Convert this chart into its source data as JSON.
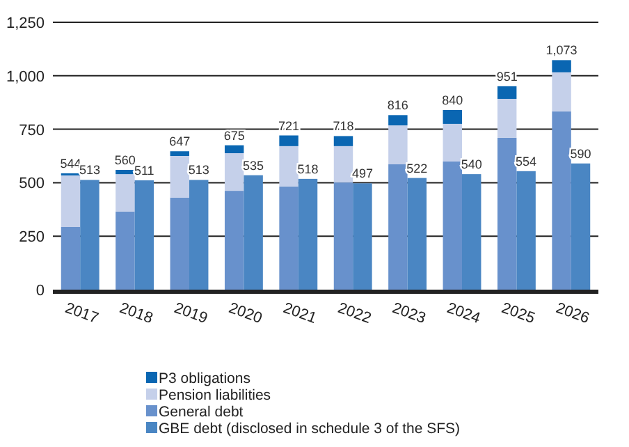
{
  "chart_data": {
    "type": "bar",
    "stacked": true,
    "categories": [
      "2017",
      null,
      "2018",
      null,
      "2019",
      null,
      "2020",
      null,
      "2021",
      null,
      "2022",
      null,
      "2023",
      null,
      "2024",
      null,
      "2025",
      null,
      "2026",
      null
    ],
    "series": [
      {
        "name": "General debt",
        "color": "#6891cc",
        "values": [
          293,
          null,
          365,
          null,
          430,
          null,
          462,
          null,
          482,
          null,
          501,
          null,
          586,
          null,
          599,
          null,
          710,
          null,
          833,
          null
        ]
      },
      {
        "name": "Pension liabilities",
        "color": "#c5d0ea",
        "values": [
          241,
          null,
          175,
          null,
          195,
          null,
          176,
          null,
          189,
          null,
          170,
          null,
          182,
          null,
          176,
          null,
          182,
          null,
          183,
          null
        ]
      },
      {
        "name": "P3 obligations",
        "color": "#0a66b2",
        "values": [
          10,
          null,
          20,
          null,
          22,
          null,
          37,
          null,
          50,
          null,
          47,
          null,
          48,
          null,
          65,
          null,
          59,
          null,
          57,
          null
        ]
      },
      {
        "name": "GBE debt (disclosed in schedule 3 of the SFS)",
        "color": "#4a86c3",
        "values": [
          null,
          513,
          null,
          511,
          null,
          513,
          null,
          535,
          null,
          518,
          null,
          497,
          null,
          522,
          null,
          540,
          null,
          554,
          null,
          590
        ]
      }
    ],
    "totals": [
      "544",
      "513",
      "560",
      "511",
      "647",
      "513",
      "675",
      "535",
      "721",
      "518",
      "718",
      "497",
      "816",
      "522",
      "840",
      "540",
      "951",
      "554",
      "1,073",
      "590"
    ],
    "ylim": [
      0,
      1250
    ],
    "yticks": [
      0,
      250,
      500,
      750,
      {
        "value": 1000,
        "label": "1,000"
      },
      {
        "value": 1250,
        "label": "1,250"
      }
    ],
    "grid": "y",
    "legend": "bottom left"
  }
}
